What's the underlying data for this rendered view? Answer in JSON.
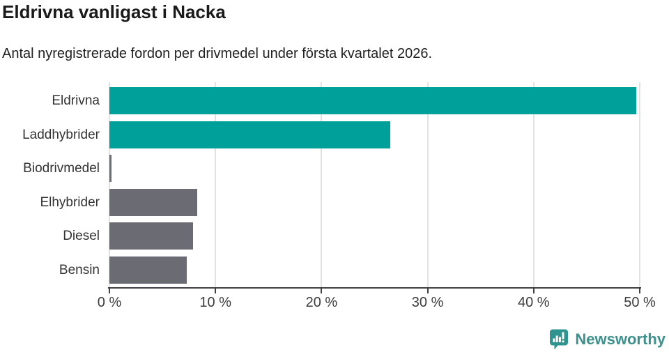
{
  "header": {
    "title": "Eldrivna vanligast i Nacka",
    "subtitle": "Antal nyregistrerade fordon per drivmedel under första kvartalet 2026."
  },
  "chart_data": {
    "type": "bar",
    "orientation": "horizontal",
    "title": "Eldrivna vanligast i Nacka",
    "subtitle": "Antal nyregistrerade fordon per drivmedel under första kvartalet 2026.",
    "categories": [
      "Eldrivna",
      "Laddhybrider",
      "Biodrivmedel",
      "Elhybrider",
      "Diesel",
      "Bensin"
    ],
    "values": [
      49.7,
      26.5,
      0.2,
      8.3,
      7.9,
      7.3
    ],
    "unit": "%",
    "xlabel": "",
    "ylabel": "",
    "xlim": [
      0,
      50
    ],
    "grid": true,
    "x_ticks": [
      {
        "value": 0,
        "label": "0 %"
      },
      {
        "value": 10,
        "label": "10 %"
      },
      {
        "value": 20,
        "label": "20 %"
      },
      {
        "value": 30,
        "label": "30 %"
      },
      {
        "value": 40,
        "label": "40 %"
      },
      {
        "value": 50,
        "label": "50 %"
      }
    ],
    "bar_colors": [
      "#00A09A",
      "#00A09A",
      "#6B6B73",
      "#6B6B73",
      "#6B6B73",
      "#6B6B73"
    ],
    "colors": {
      "accent_teal": "#00A09A",
      "neutral_gray": "#6B6B73",
      "gridline": "#E2E2E2",
      "axis": "#3F3F44",
      "text": "#333333"
    },
    "legend": null
  },
  "branding": {
    "name": "Newsworthy",
    "color": "#3D918D",
    "icon": "newsworthy-logo-icon",
    "icon_color": "#2F948F"
  }
}
